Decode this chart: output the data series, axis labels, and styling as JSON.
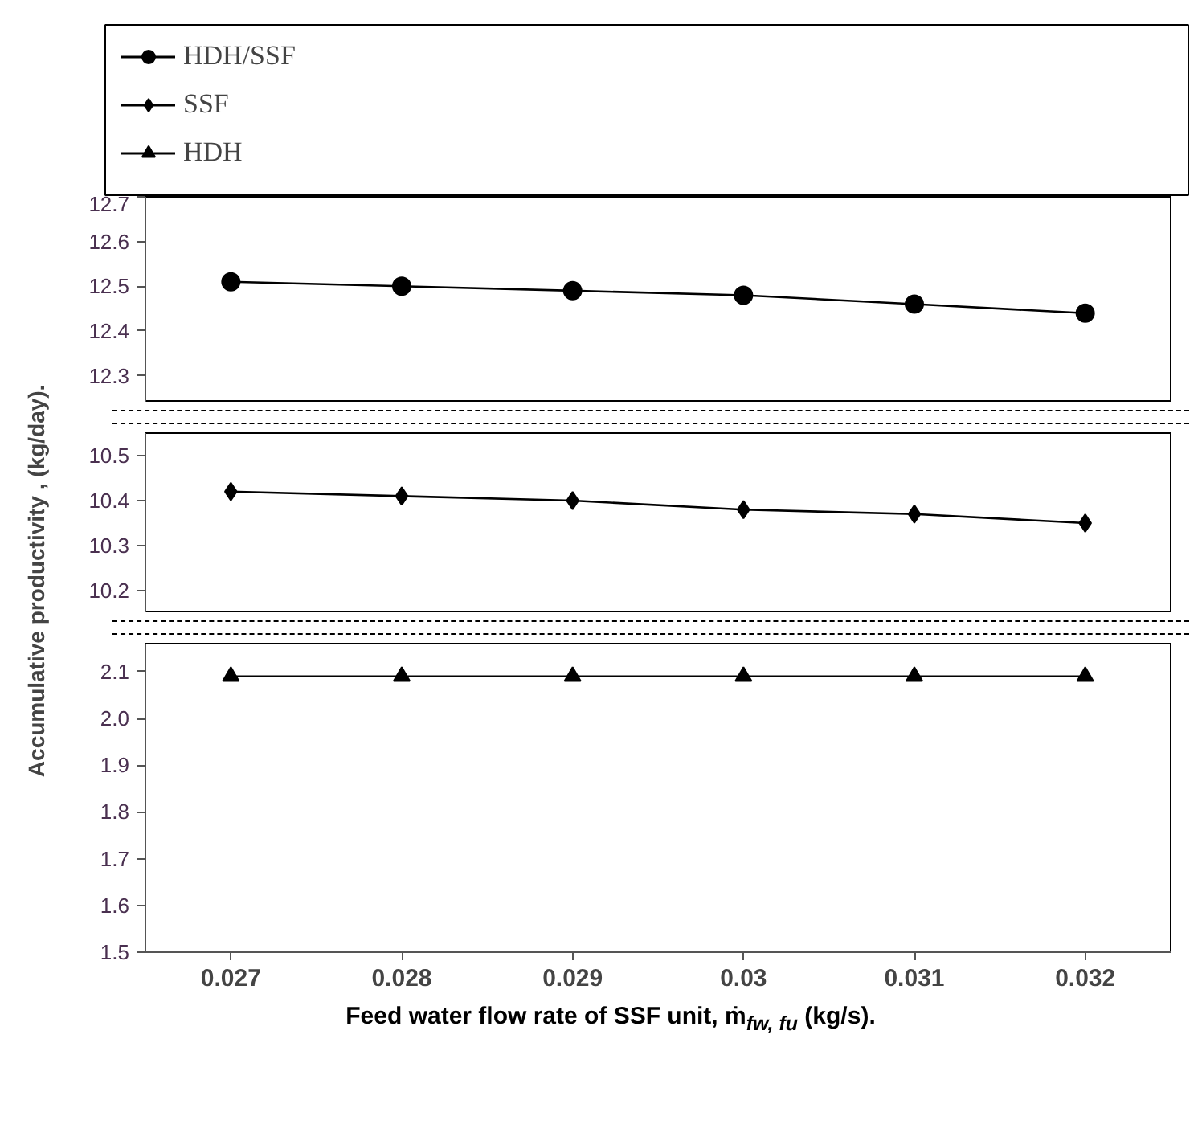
{
  "chart_data": [
    {
      "type": "line",
      "xlim": [
        0.0265,
        0.0325
      ],
      "xticks": [
        0.027,
        0.028,
        0.029,
        0.03,
        0.031,
        0.032
      ],
      "ylim": [
        12.24,
        12.7
      ],
      "yticks": [
        12.3,
        12.4,
        12.5,
        12.6,
        12.7
      ],
      "tick_labels": "y",
      "grid": false,
      "legend": "top",
      "line_style": "solid",
      "x": [
        0.027,
        0.028,
        0.029,
        0.03,
        0.031,
        0.032
      ],
      "series": [
        {
          "name": "HDH/SSF",
          "color": "#000000",
          "marker": "circle",
          "values": [
            12.51,
            12.5,
            12.49,
            12.48,
            12.46,
            12.44
          ]
        }
      ]
    },
    {
      "type": "line",
      "xlim": [
        0.0265,
        0.0325
      ],
      "xticks": [
        0.027,
        0.028,
        0.029,
        0.03,
        0.031,
        0.032
      ],
      "ylim": [
        10.15,
        10.55
      ],
      "yticks": [
        10.2,
        10.3,
        10.4,
        10.5
      ],
      "tick_labels": "y",
      "grid": false,
      "line_style": "solid",
      "ylabel": "Accumulative  productivity , (kg/day).",
      "x": [
        0.027,
        0.028,
        0.029,
        0.03,
        0.031,
        0.032
      ],
      "series": [
        {
          "name": "SSF",
          "color": "#000000",
          "marker": "diamond",
          "values": [
            10.42,
            10.41,
            10.4,
            10.38,
            10.37,
            10.35
          ]
        }
      ]
    },
    {
      "type": "line",
      "xlim": [
        0.0265,
        0.0325
      ],
      "xticks": [
        0.027,
        0.028,
        0.029,
        0.03,
        0.031,
        0.032
      ],
      "ylim": [
        1.5,
        2.16
      ],
      "yticks": [
        1.5,
        1.6,
        1.7,
        1.8,
        1.9,
        {
          "value": 2.0,
          "label": "2.0"
        },
        2.1
      ],
      "grid": false,
      "line_style": "solid",
      "xlabel": "Feed water flow rate of SSF unit, ṁ$_{fw, fu}$ (kg/s).",
      "x": [
        0.027,
        0.028,
        0.029,
        0.03,
        0.031,
        0.032
      ],
      "series": [
        {
          "name": "HDH",
          "color": "#000000",
          "marker": "triangle",
          "values": [
            2.09,
            2.09,
            2.09,
            2.09,
            2.09,
            2.09
          ]
        }
      ]
    }
  ]
}
